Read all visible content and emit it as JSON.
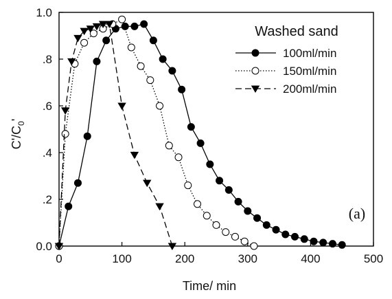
{
  "chart_data": {
    "type": "line",
    "title": "",
    "xlabel": "Time/ min",
    "ylabel_main": "C'/C",
    "ylabel_sub": "0",
    "ylabel_tail": "'",
    "xlim": [
      0,
      500
    ],
    "ylim": [
      0,
      1.0
    ],
    "x_ticks": [
      0,
      100,
      200,
      300,
      400,
      500
    ],
    "x_tick_labels": [
      "0",
      "100",
      "200",
      "300",
      "400",
      "500"
    ],
    "y_ticks": [
      0,
      0.2,
      0.4,
      0.6,
      0.8,
      1.0
    ],
    "y_tick_labels": [
      "0.0",
      ".2",
      ".4",
      ".6",
      ".8",
      "1.0"
    ],
    "grid": false,
    "legend": {
      "title": "Washed sand",
      "placement": "top-right"
    },
    "annotation": "(a)",
    "series": [
      {
        "name": "100ml/min",
        "marker": "filled-circle",
        "line_style": "solid",
        "x": [
          0,
          15,
          30,
          45,
          60,
          75,
          90,
          105,
          120,
          135,
          150,
          165,
          180,
          195,
          210,
          225,
          240,
          255,
          270,
          285,
          300,
          315,
          330,
          345,
          360,
          375,
          390,
          405,
          420,
          435,
          450
        ],
        "y": [
          0.0,
          0.17,
          0.27,
          0.47,
          0.79,
          0.88,
          0.93,
          0.94,
          0.94,
          0.95,
          0.88,
          0.8,
          0.75,
          0.67,
          0.51,
          0.44,
          0.35,
          0.28,
          0.24,
          0.19,
          0.15,
          0.12,
          0.09,
          0.07,
          0.05,
          0.04,
          0.03,
          0.02,
          0.015,
          0.01,
          0.005
        ]
      },
      {
        "name": "150ml/min",
        "marker": "open-circle",
        "line_style": "dotted",
        "x": [
          0,
          10,
          25,
          40,
          55,
          70,
          85,
          100,
          115,
          130,
          145,
          160,
          175,
          190,
          205,
          220,
          235,
          250,
          265,
          280,
          295,
          310
        ],
        "y": [
          0.0,
          0.48,
          0.78,
          0.87,
          0.91,
          0.93,
          0.95,
          0.97,
          0.85,
          0.77,
          0.71,
          0.6,
          0.43,
          0.38,
          0.26,
          0.18,
          0.13,
          0.09,
          0.06,
          0.04,
          0.02,
          0.0
        ]
      },
      {
        "name": "200ml/min",
        "marker": "filled-triangle-down",
        "line_style": "dashed",
        "x": [
          0,
          10,
          20,
          30,
          40,
          50,
          60,
          70,
          80,
          100,
          120,
          140,
          160,
          180
        ],
        "y": [
          0.0,
          0.58,
          0.79,
          0.89,
          0.92,
          0.93,
          0.94,
          0.95,
          0.95,
          0.6,
          0.39,
          0.27,
          0.17,
          0.0
        ]
      }
    ]
  }
}
